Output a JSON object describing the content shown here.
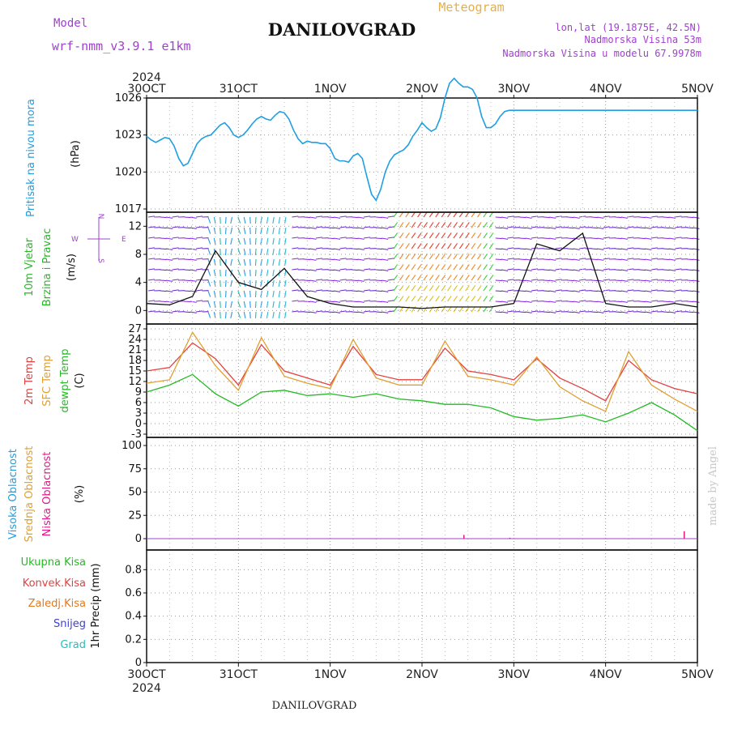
{
  "header": {
    "model_label": "Model",
    "model_value": "wrf-nmm_v3.9.1 e1km",
    "station": "DANILOVGRAD",
    "meteogram": "Meteogram",
    "lonlat": "lon,lat (19.1875E, 42.5N)",
    "elevation": "Nadmorska Visina 53m",
    "model_elevation": "Nadmorska Visina u modelu 67.9978m",
    "footer_station": "DANILOVGRAD",
    "credit": "made by Angel"
  },
  "colors": {
    "pressure": "#1f9fe3",
    "wind_label": "#22bb22",
    "temp2m": "#e34040",
    "sfc": "#e0a030",
    "dewpt": "#22bb22",
    "high_cloud": "#1f9fe3",
    "mid_cloud": "#e0a030",
    "low_cloud": "#e01a8a",
    "total_precip": "#22bb22",
    "conv_precip": "#e34040",
    "frozen": "#e07a20",
    "snow": "#4040d0",
    "hail": "#20c0c0",
    "purple": "#a040d0"
  },
  "time_axis": {
    "top_year": "2024",
    "bottom_year": "2024",
    "ticks": [
      "30OCT",
      "31OCT",
      "1NOV",
      "2NOV",
      "3NOV",
      "4NOV",
      "5NOV"
    ]
  },
  "chart_data": [
    {
      "type": "line",
      "panel": "pressure",
      "ylabel_name": "Pritisak na nivou mora",
      "unit": "(hPa)",
      "yticks": [
        "1017",
        "1020",
        "1023",
        "1026"
      ],
      "ylim": [
        1017,
        1026
      ],
      "x": [
        0,
        0.05,
        0.1,
        0.15,
        0.2,
        0.25,
        0.3,
        0.35,
        0.4,
        0.45,
        0.5,
        0.55,
        0.6,
        0.65,
        0.7,
        0.75,
        0.8,
        0.85,
        0.9,
        0.95,
        1.0,
        1.05,
        1.1,
        1.15,
        1.2,
        1.25,
        1.3,
        1.35,
        1.4,
        1.45,
        1.5,
        1.55,
        1.6,
        1.65,
        1.7,
        1.75,
        1.8,
        1.85,
        1.9,
        1.95,
        2.0,
        2.05,
        2.1,
        2.15,
        2.2,
        2.25,
        2.3,
        2.35,
        2.4,
        2.45,
        2.5,
        2.55,
        2.6,
        2.65,
        2.7,
        2.75,
        2.8,
        2.85,
        2.9,
        2.95,
        3.0,
        3.05,
        3.1,
        3.15,
        3.2,
        3.25,
        3.3,
        3.35,
        3.4,
        3.45,
        3.5,
        3.55,
        3.6,
        3.65,
        3.7,
        3.75,
        3.8,
        3.85,
        3.9,
        3.95,
        4.0,
        4.05,
        4.1,
        4.15,
        4.2,
        4.25,
        4.3,
        4.35,
        4.4,
        4.45,
        4.5,
        4.55,
        4.6,
        4.65,
        4.7,
        4.75,
        4.8,
        4.85,
        4.9,
        4.95,
        5.0,
        5.05,
        5.1,
        5.15,
        5.2,
        5.25,
        5.3,
        5.35,
        5.4,
        5.45,
        5.5,
        5.55,
        5.6,
        5.65,
        5.7,
        5.75,
        5.8,
        5.85,
        5.9,
        5.95,
        6.0
      ],
      "series": [
        {
          "values": [
            1022.9,
            1022.6,
            1022.4,
            1022.6,
            1022.8,
            1022.7,
            1022.1,
            1021.1,
            1020.5,
            1020.7,
            1021.5,
            1022.3,
            1022.7,
            1022.9,
            1023.0,
            1023.4,
            1023.8,
            1024.0,
            1023.6,
            1023.0,
            1022.8,
            1023.0,
            1023.4,
            1023.9,
            1024.3,
            1024.5,
            1024.3,
            1024.2,
            1024.6,
            1024.9,
            1024.8,
            1024.3,
            1023.4,
            1022.7,
            1022.3,
            1022.5,
            1022.4,
            1022.4,
            1022.3,
            1022.3,
            1021.9,
            1021.1,
            1020.9,
            1020.9,
            1020.8,
            1021.3,
            1021.5,
            1021.1,
            1019.6,
            1018.2,
            1017.7,
            1018.6,
            1020.0,
            1020.9,
            1021.4,
            1021.6,
            1021.8,
            1022.2,
            1022.9,
            1023.4,
            1024.0,
            1023.6,
            1023.3,
            1023.5,
            1024.4,
            1026.0,
            1027.2,
            1027.6,
            1027.2,
            1026.9,
            1026.9,
            1026.7,
            1026.0,
            1024.5,
            1023.6,
            1023.6,
            1023.9,
            1024.5,
            1024.9,
            1025.0,
            1025.0,
            1025.0,
            1025.0,
            1025.0,
            1025.0,
            1025.0,
            1025.0,
            1025.0,
            1025.0,
            1025.0,
            1025.0,
            1025.0,
            1025.0,
            1025.0,
            1025.0,
            1025.0,
            1025.0,
            1025.0,
            1025.0,
            1025.0,
            1025.0,
            1025.0,
            1025.0,
            1025.0,
            1025.0,
            1025.0,
            1025.0,
            1025.0,
            1025.0,
            1025.0,
            1025.0,
            1025.0,
            1025.0,
            1025.0,
            1025.0,
            1025.0,
            1025.0,
            1025.0,
            1025.0,
            1025.0,
            1025.0
          ]
        }
      ]
    },
    {
      "type": "line",
      "panel": "wind",
      "ylabel_name": "10m Vjetar",
      "ylabel_name2": "Brzina i Pravac",
      "unit": "(m/s)",
      "compass": {
        "n": "N",
        "s": "S",
        "e": "E",
        "w": "W"
      },
      "yticks": [
        "0",
        "4",
        "8",
        "12"
      ],
      "ylim": [
        -1,
        14
      ],
      "x": [
        0,
        0.25,
        0.5,
        0.75,
        1.0,
        1.25,
        1.5,
        1.75,
        2.0,
        2.25,
        2.5,
        2.75,
        3.0,
        3.25,
        3.5,
        3.75,
        4.0,
        4.25,
        4.5,
        4.75,
        5.0,
        5.25,
        5.5,
        5.75,
        6.0
      ],
      "series": [
        {
          "values": [
            1.0,
            0.8,
            2.0,
            8.5,
            4.0,
            3.0,
            6.0,
            2.0,
            1.0,
            0.5,
            0.5,
            0.5,
            0.3,
            0.5,
            0.5,
            0.5,
            1.0,
            9.5,
            8.5,
            11.0,
            1.0,
            0.5,
            0.5,
            1.0,
            0.5
          ]
        }
      ]
    },
    {
      "type": "line",
      "panel": "temperature",
      "ylabel_name": "2m Temp",
      "ylabel_name2": "SFC Temp",
      "ylabel_name3": "dewpt Temp",
      "unit": "(C)",
      "yticks": [
        "-3",
        "0",
        "3",
        "6",
        "9",
        "12",
        "15",
        "18",
        "21",
        "24",
        "27"
      ],
      "ylim": [
        -3,
        27
      ],
      "x": [
        0,
        0.25,
        0.5,
        0.75,
        1.0,
        1.25,
        1.5,
        1.75,
        2.0,
        2.25,
        2.5,
        2.75,
        3.0,
        3.25,
        3.5,
        3.75,
        4.0,
        4.25,
        4.5,
        4.75,
        5.0,
        5.25,
        5.5,
        5.75,
        6.0
      ],
      "series": [
        {
          "name": "2m Temp",
          "values": [
            15.0,
            16.0,
            23.0,
            18.5,
            11.0,
            22.5,
            15.0,
            13.0,
            11.0,
            22.0,
            14.0,
            12.5,
            12.5,
            21.5,
            15.0,
            14.0,
            12.5,
            18.5,
            13.0,
            10.0,
            6.5,
            18.0,
            12.5,
            10.0,
            8.5
          ]
        },
        {
          "name": "SFC Temp",
          "values": [
            11.5,
            12.5,
            26.0,
            16.5,
            9.5,
            24.5,
            13.5,
            11.5,
            10.0,
            24.0,
            13.0,
            11.0,
            11.0,
            23.5,
            13.5,
            12.5,
            11.0,
            19.0,
            10.5,
            6.5,
            3.5,
            20.5,
            11.0,
            7.0,
            3.5
          ]
        },
        {
          "name": "dewpt Temp",
          "values": [
            9.0,
            11.0,
            14.0,
            8.5,
            5.0,
            9.0,
            9.5,
            8.0,
            8.5,
            7.5,
            8.5,
            7.0,
            6.5,
            5.5,
            5.5,
            4.5,
            2.0,
            1.0,
            1.5,
            2.5,
            0.5,
            3.0,
            6.0,
            2.5,
            -2.0
          ]
        }
      ]
    },
    {
      "type": "bar",
      "panel": "cloud",
      "ylabel_name": "Visoka Oblacnost",
      "ylabel_name2": "Srednja Oblacnost",
      "ylabel_name3": "Niska Oblacnost",
      "unit": "(%)",
      "yticks": [
        "0",
        "25",
        "50",
        "75",
        "100"
      ],
      "ylim": [
        0,
        100
      ],
      "x": [
        3.45,
        3.95,
        5.85
      ],
      "series": [
        {
          "name": "Niska Oblacnost",
          "values": [
            4,
            1,
            8
          ]
        }
      ]
    },
    {
      "type": "bar",
      "panel": "precip",
      "labels": [
        "Ukupna Kisa",
        "Konvek.Kisa",
        "Zaledj.Kisa",
        "Snijeg",
        "Grad"
      ],
      "unit": "1hr Precip (mm)",
      "yticks": [
        "0",
        "0.2",
        "0.4",
        "0.6",
        "0.8"
      ],
      "ylim": [
        0,
        0.9
      ],
      "x": [],
      "series": []
    }
  ]
}
